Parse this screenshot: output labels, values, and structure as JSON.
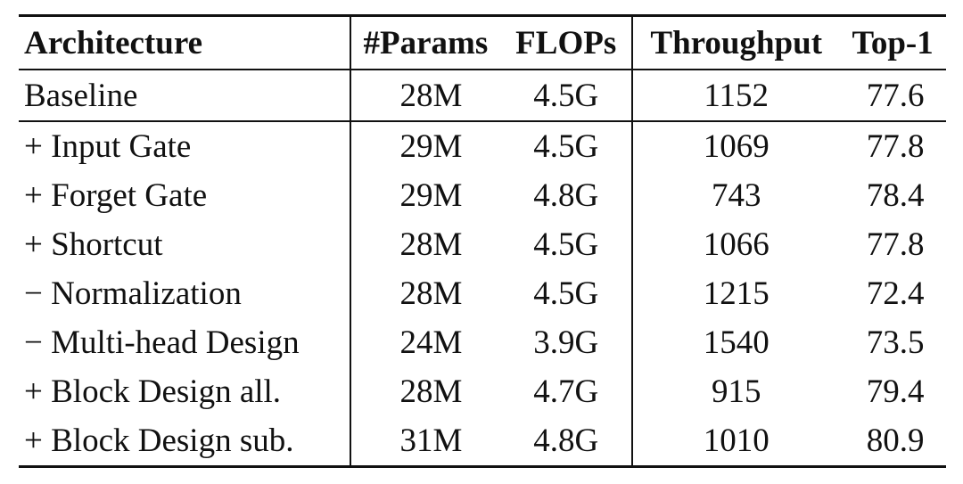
{
  "table": {
    "columns": [
      "Architecture",
      "#Params",
      "FLOPs",
      "Throughput",
      "Top-1"
    ],
    "baseline": {
      "architecture": "Baseline",
      "params": "28M",
      "flops": "4.5G",
      "throughput": "1152",
      "top1": "77.6"
    },
    "rows": [
      {
        "architecture": "+ Input Gate",
        "params": "29M",
        "flops": "4.5G",
        "throughput": "1069",
        "top1": "77.8"
      },
      {
        "architecture": "+ Forget Gate",
        "params": "29M",
        "flops": "4.8G",
        "throughput": "743",
        "top1": "78.4"
      },
      {
        "architecture": "+ Shortcut",
        "params": "28M",
        "flops": "4.5G",
        "throughput": "1066",
        "top1": "77.8"
      },
      {
        "architecture": "− Normalization",
        "params": "28M",
        "flops": "4.5G",
        "throughput": "1215",
        "top1": "72.4"
      },
      {
        "architecture": "− Multi-head Design",
        "params": "24M",
        "flops": "3.9G",
        "throughput": "1540",
        "top1": "73.5"
      },
      {
        "architecture": "+ Block Design all.",
        "params": "28M",
        "flops": "4.7G",
        "throughput": "915",
        "top1": "79.4"
      },
      {
        "architecture": "+ Block Design sub.",
        "params": "31M",
        "flops": "4.8G",
        "throughput": "1010",
        "top1": "80.9"
      }
    ]
  }
}
